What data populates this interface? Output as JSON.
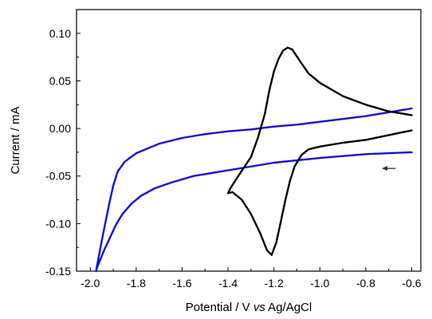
{
  "chart_data": {
    "type": "line",
    "xlabel_parts": [
      "Potential / V ",
      "vs",
      " Ag/AgCl"
    ],
    "ylabel": "Current / mA",
    "xlim": [
      -2.06,
      -0.56
    ],
    "ylim": [
      -0.15,
      0.125
    ],
    "x_ticks": [
      -2.0,
      -1.8,
      -1.6,
      -1.4,
      -1.2,
      -1.0,
      -0.8,
      -0.6
    ],
    "x_tick_labels": [
      "-2.0",
      "-1.8",
      "-1.6",
      "-1.4",
      "-1.2",
      "-1.0",
      "-0.8",
      "-0.6"
    ],
    "y_ticks": [
      -0.15,
      -0.1,
      -0.05,
      0.0,
      0.05,
      0.1
    ],
    "y_tick_labels": [
      "-0.15",
      "-0.10",
      "-0.05",
      "0.00",
      "0.05",
      "0.10"
    ],
    "grid": false,
    "annotation": {
      "type": "arrow",
      "direction": "left",
      "color": "#333333",
      "x_from": -0.67,
      "x_to": -0.73,
      "y": -0.042
    },
    "series": [
      {
        "color": "#1010e0",
        "x": [
          -0.6,
          -0.8,
          -1.0,
          -1.2,
          -1.4,
          -1.55,
          -1.65,
          -1.72,
          -1.78,
          -1.82,
          -1.86,
          -1.89,
          -1.92,
          -1.94,
          -1.96,
          -1.97,
          -1.975,
          -1.95,
          -1.92,
          -1.9,
          -1.88,
          -1.85,
          -1.8,
          -1.7,
          -1.6,
          -1.5,
          -1.4,
          -1.3,
          -1.2,
          -1.1,
          -1.0,
          -0.9,
          -0.8,
          -0.7,
          -0.6
        ],
        "y": [
          -0.025,
          -0.027,
          -0.031,
          -0.036,
          -0.044,
          -0.05,
          -0.057,
          -0.063,
          -0.071,
          -0.079,
          -0.09,
          -0.102,
          -0.118,
          -0.128,
          -0.14,
          -0.146,
          -0.15,
          -0.118,
          -0.082,
          -0.06,
          -0.045,
          -0.035,
          -0.026,
          -0.016,
          -0.01,
          -0.006,
          -0.003,
          -0.001,
          0.002,
          0.004,
          0.007,
          0.01,
          0.013,
          0.017,
          0.021
        ]
      },
      {
        "color": "#000000",
        "x": [
          -0.6,
          -0.7,
          -0.8,
          -0.9,
          -1.0,
          -1.05,
          -1.08,
          -1.11,
          -1.13,
          -1.15,
          -1.17,
          -1.19,
          -1.21,
          -1.23,
          -1.26,
          -1.3,
          -1.34,
          -1.38,
          -1.4,
          -1.39,
          -1.35,
          -1.3,
          -1.27,
          -1.24,
          -1.22,
          -1.2,
          -1.18,
          -1.16,
          -1.14,
          -1.12,
          -1.09,
          -1.05,
          -1.0,
          -0.9,
          -0.8,
          -0.7,
          -0.6
        ],
        "y": [
          -0.002,
          -0.007,
          -0.012,
          -0.015,
          -0.019,
          -0.022,
          -0.028,
          -0.04,
          -0.055,
          -0.075,
          -0.098,
          -0.12,
          -0.133,
          -0.128,
          -0.11,
          -0.09,
          -0.075,
          -0.067,
          -0.068,
          -0.063,
          -0.048,
          -0.03,
          -0.01,
          0.015,
          0.04,
          0.06,
          0.073,
          0.082,
          0.085,
          0.083,
          0.072,
          0.058,
          0.048,
          0.034,
          0.025,
          0.018,
          0.014
        ]
      }
    ]
  }
}
